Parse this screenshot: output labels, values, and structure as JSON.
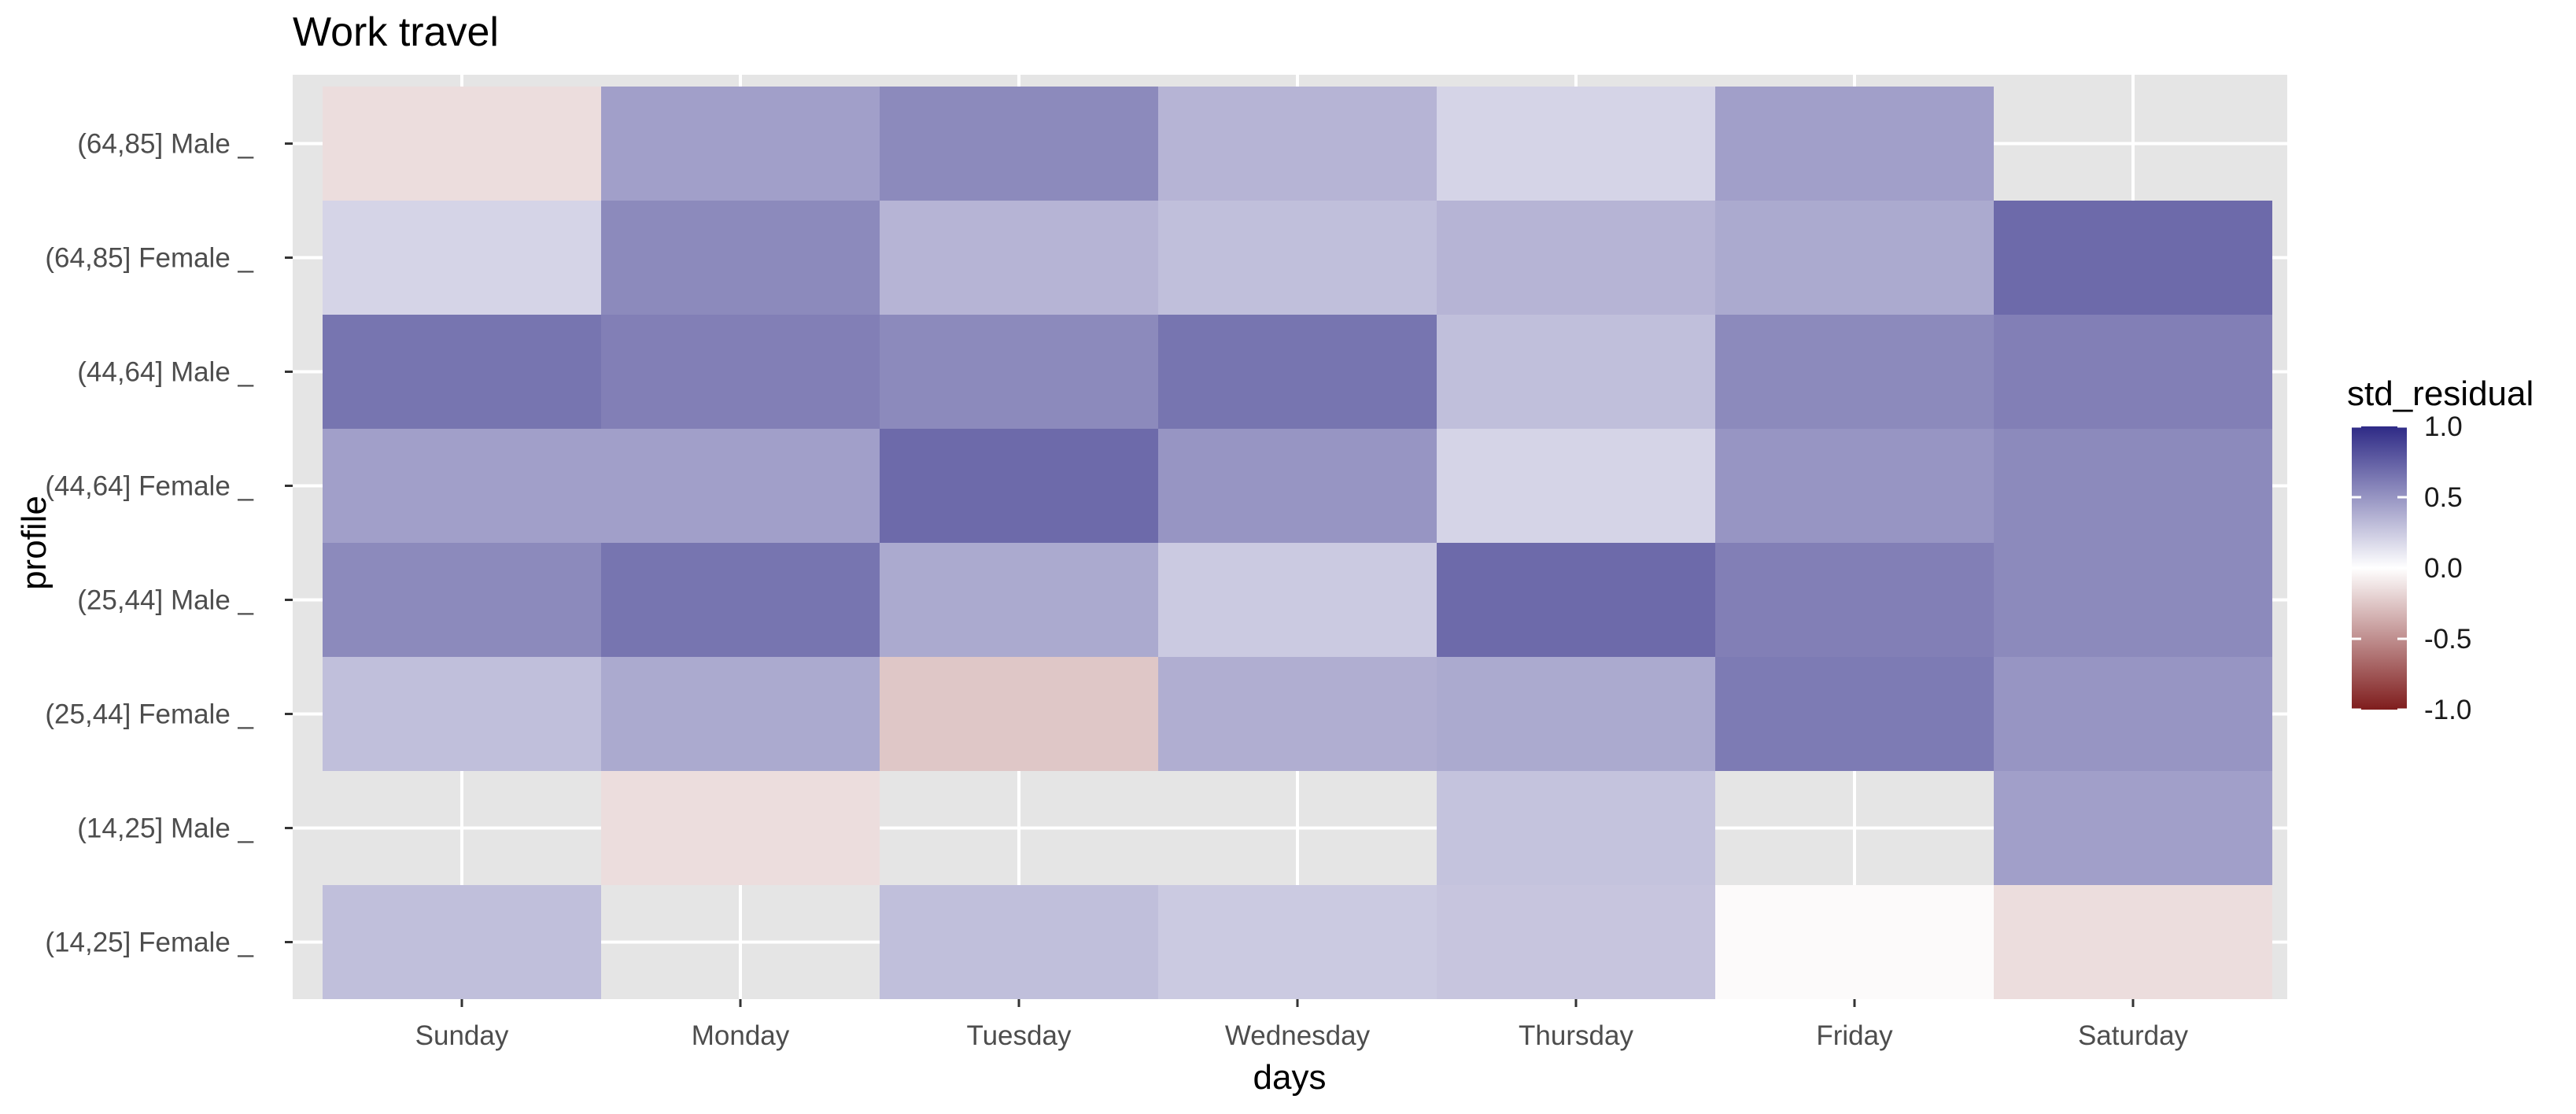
{
  "colors": {
    "panel_background": "#e5e5e5",
    "grid": "#ffffff",
    "high": "#2e2a86",
    "mid": "#ffffff",
    "low": "#7f1d1d"
  },
  "chart_data": {
    "type": "heatmap",
    "title": "Work travel",
    "xlabel": "days",
    "ylabel": "profile",
    "x": [
      "Sunday",
      "Monday",
      "Tuesday",
      "Wednesday",
      "Thursday",
      "Friday",
      "Saturday"
    ],
    "y": [
      "(64,85] Male _",
      "(64,85] Female _",
      "(44,64] Male _",
      "(44,64] Female _",
      "(25,44] Male _",
      "(25,44] Female _",
      "(14,25] Male _",
      "(14,25] Female _"
    ],
    "values": [
      [
        -0.15,
        0.45,
        0.55,
        0.35,
        0.2,
        0.45,
        null
      ],
      [
        0.2,
        0.55,
        0.35,
        0.3,
        0.35,
        0.4,
        0.7
      ],
      [
        0.65,
        0.6,
        0.55,
        0.65,
        0.3,
        0.55,
        0.6
      ],
      [
        0.45,
        0.45,
        0.7,
        0.5,
        0.2,
        0.5,
        0.55
      ],
      [
        0.55,
        0.65,
        0.4,
        0.25,
        0.7,
        0.6,
        0.55
      ],
      [
        0.3,
        0.4,
        -0.25,
        0.38,
        0.4,
        0.62,
        0.5
      ],
      [
        null,
        -0.15,
        null,
        null,
        0.28,
        null,
        0.45
      ],
      [
        0.3,
        null,
        0.3,
        0.25,
        0.27,
        -0.02,
        -0.15
      ]
    ],
    "legend": {
      "title": "std_residual",
      "ticks": [
        "1.0",
        "0.5",
        "0.0",
        "-0.5",
        "-1.0"
      ],
      "tick_values": [
        1.0,
        0.5,
        0.0,
        -0.5,
        -1.0
      ],
      "range": [
        -1.0,
        1.0
      ]
    },
    "grid": true
  }
}
